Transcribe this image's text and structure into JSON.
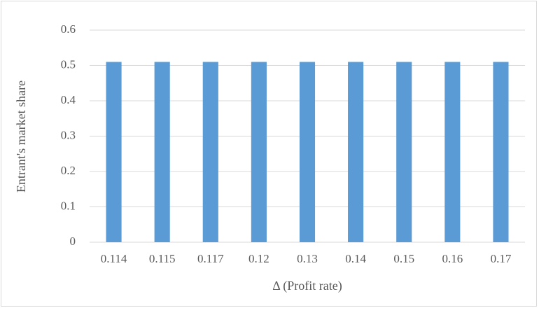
{
  "chart_data": {
    "type": "bar",
    "x_label": "Δ (Profit rate)",
    "y_label": "Entrant's market share",
    "categories": [
      "0.114",
      "0.115",
      "0.117",
      "0.12",
      "0.13",
      "0.14",
      "0.15",
      "0.16",
      "0.17"
    ],
    "values": [
      0.51,
      0.51,
      0.51,
      0.51,
      0.51,
      0.51,
      0.51,
      0.51,
      0.51
    ],
    "color": "#5b9bd5",
    "ylim": [
      0,
      0.6
    ],
    "yticks": [
      0,
      0.1,
      0.2,
      0.3,
      0.4,
      0.5,
      0.6
    ],
    "grid": true
  }
}
